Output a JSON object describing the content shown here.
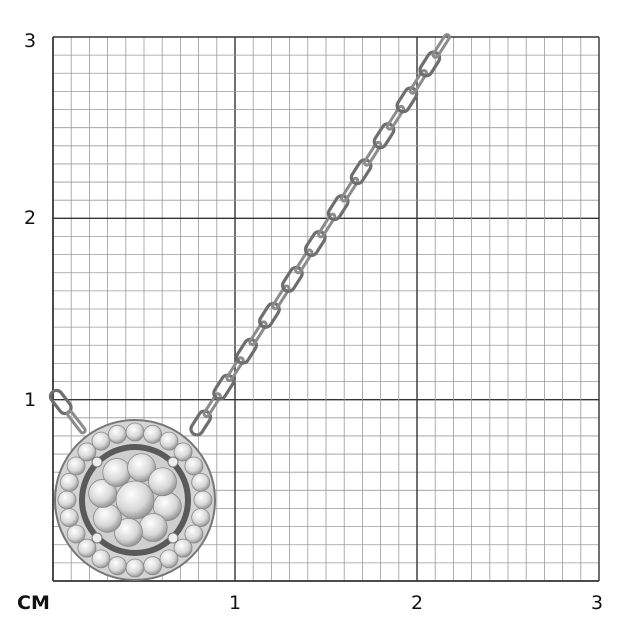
{
  "scale": {
    "unit_label": "CM",
    "x_ticks": [
      "1",
      "2",
      "3"
    ],
    "y_ticks": [
      "1",
      "2",
      "3"
    ],
    "subdivisions_per_unit": 10,
    "range_cm": [
      0,
      3
    ]
  },
  "colors": {
    "minor_grid": "#9a9a9a",
    "major_grid": "#333333",
    "metal": "#c8c8c8",
    "metal_dark": "#6e6e6e"
  },
  "product": {
    "icon": "halo-diamond-pendant-necklace"
  }
}
